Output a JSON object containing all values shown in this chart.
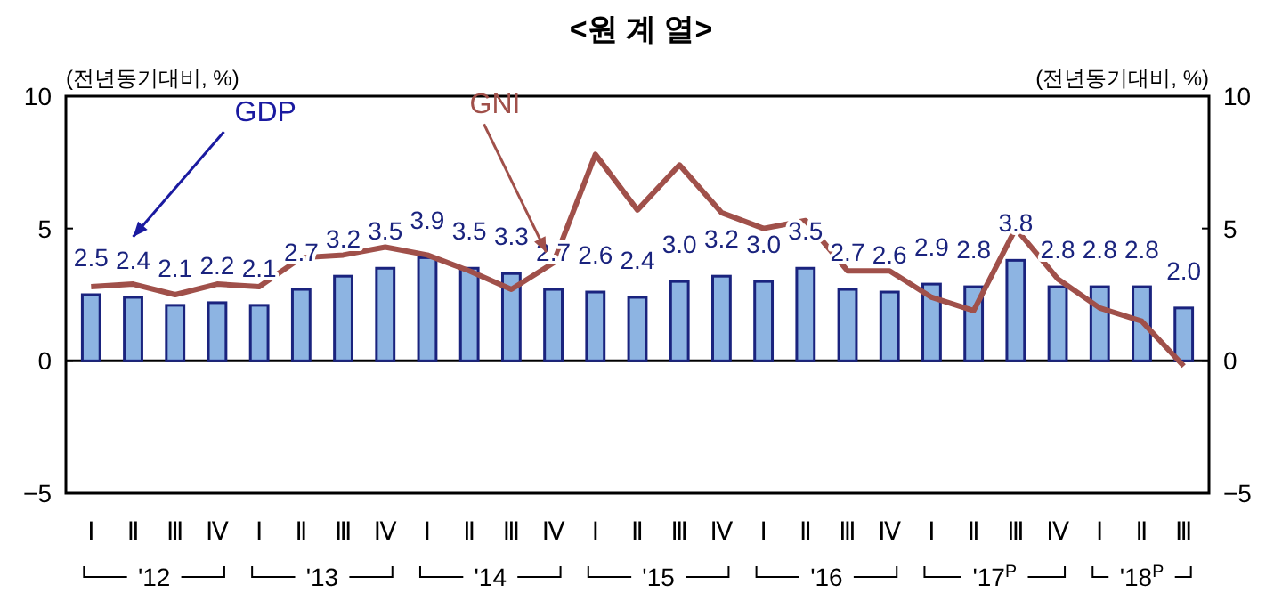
{
  "chart_data": {
    "type": "bar",
    "title": "<원 계 열>",
    "ylabel": "(전년동기대비, %)",
    "y2label": "(전년동기대비, %)",
    "categories": [
      "Ⅰ",
      "Ⅱ",
      "Ⅲ",
      "Ⅳ",
      "Ⅰ",
      "Ⅱ",
      "Ⅲ",
      "Ⅳ",
      "Ⅰ",
      "Ⅱ",
      "Ⅲ",
      "Ⅳ",
      "Ⅰ",
      "Ⅱ",
      "Ⅲ",
      "Ⅳ",
      "Ⅰ",
      "Ⅱ",
      "Ⅲ",
      "Ⅳ",
      "Ⅰ",
      "Ⅱ",
      "Ⅲ",
      "Ⅳ",
      "Ⅰ",
      "Ⅱ",
      "Ⅲ"
    ],
    "series": [
      {
        "name": "GDP",
        "color": "#8db4e2",
        "values": [
          2.5,
          2.4,
          2.1,
          2.2,
          2.1,
          2.7,
          3.2,
          3.5,
          3.9,
          3.5,
          3.3,
          2.7,
          2.6,
          2.4,
          3.0,
          3.2,
          3.0,
          3.5,
          2.7,
          2.6,
          2.9,
          2.8,
          3.8,
          2.8,
          2.8,
          2.8,
          2.0
        ],
        "value_labels": [
          "2.5",
          "2.4",
          "2.1",
          "2.2",
          "2.1",
          "2.7",
          "3.2",
          "3.5",
          "3.9",
          "3.5",
          "3.3",
          "2.7",
          "2.6",
          "2.4",
          "3.0",
          "3.2",
          "3.0",
          "3.5",
          "2.7",
          "2.6",
          "2.9",
          "2.8",
          "3.8",
          "2.8",
          "2.8",
          "2.8",
          "2.0"
        ]
      },
      {
        "name": "GNI",
        "type": "line",
        "color": "#a0504a",
        "values": [
          2.8,
          2.9,
          2.5,
          2.9,
          2.8,
          3.9,
          4.0,
          4.3,
          4.0,
          3.4,
          2.7,
          3.7,
          7.8,
          5.7,
          7.4,
          5.6,
          5.0,
          5.3,
          3.4,
          3.4,
          2.4,
          1.9,
          5.0,
          3.1,
          2.0,
          1.5,
          -0.2
        ]
      }
    ],
    "ylim": [
      -5,
      10
    ],
    "yticks": [
      {
        "value": -5,
        "label": "−5"
      },
      0,
      5,
      10
    ],
    "y2lim": [
      -5,
      10
    ],
    "y2ticks": [
      {
        "value": -5,
        "label": "−5"
      },
      0,
      5,
      10
    ],
    "legend": false,
    "annotations": [
      "'12",
      "'13",
      "'14",
      "'15",
      "'16",
      "'17$^{P}$",
      "'18$^{P}$"
    ]
  }
}
